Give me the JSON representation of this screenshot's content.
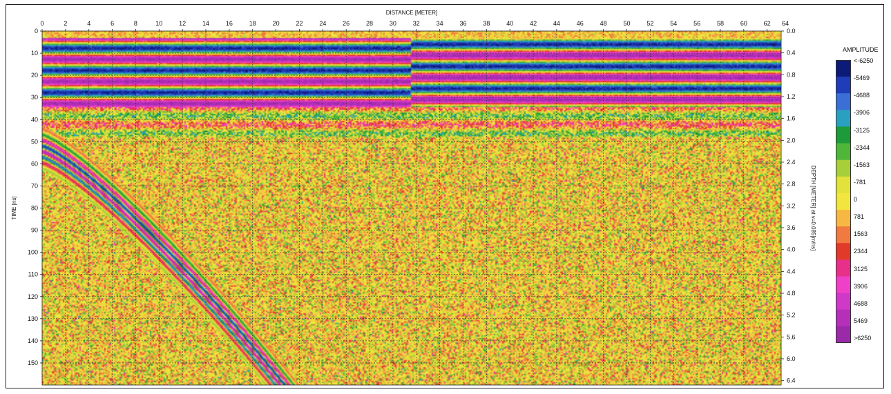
{
  "chart_data": {
    "type": "heatmap",
    "title": "",
    "xlabel": "DISTANCE [METER]",
    "ylabel_left": "TIME [ns]",
    "ylabel_right": "DEPTH [METER] at v=0.085[m/ns]",
    "x_ticks": [
      0,
      2,
      4,
      6,
      8,
      10,
      12,
      14,
      16,
      18,
      20,
      22,
      24,
      26,
      28,
      30,
      32,
      34,
      36,
      38,
      40,
      42,
      44,
      46,
      48,
      50,
      52,
      54,
      56,
      58,
      60,
      62,
      64
    ],
    "x_range": [
      0,
      63.2
    ],
    "time_ticks": [
      0,
      10,
      20,
      30,
      40,
      50,
      60,
      70,
      80,
      90,
      100,
      110,
      120,
      130,
      140,
      150
    ],
    "time_range": [
      0,
      160
    ],
    "depth_ticks": [
      "0.0",
      "0.4",
      "0.8",
      "1.2",
      "1.6",
      "2.0",
      "2.4",
      "2.8",
      "3.2",
      "3.6",
      "4.0",
      "4.4",
      "4.8",
      "5.2",
      "5.6",
      "6.0",
      "6.4"
    ],
    "grid": true,
    "colorbar": {
      "title": "AMPLITUDE",
      "position": "right",
      "labels": [
        "<-6250",
        "-5469",
        "-4688",
        "-3906",
        "-3125",
        "-2344",
        "-1563",
        "-781",
        "0",
        "781",
        "1563",
        "2344",
        "3125",
        "3906",
        "4688",
        "5469",
        ">6250"
      ],
      "colors": [
        "#0c1a78",
        "#1f3db8",
        "#3c6fd6",
        "#2aa0c0",
        "#1d9a3a",
        "#4fb63a",
        "#a6cf3a",
        "#e2e23a",
        "#f2e63e",
        "#f6b843",
        "#f07a40",
        "#e23a2a",
        "#e8308a",
        "#f040c8",
        "#d038c8",
        "#b52fb8",
        "#9b2aa8"
      ]
    },
    "features": {
      "upper_bands_time_ns": [
        3,
        8,
        13,
        18,
        23,
        28
      ],
      "band_step_distance_m": 31.5,
      "hyperbola_start_distance_m": 0,
      "hyperbola_start_time_ns": 50,
      "hyperbola_end_distance_m": 21,
      "hyperbola_end_time_ns": 160
    }
  }
}
